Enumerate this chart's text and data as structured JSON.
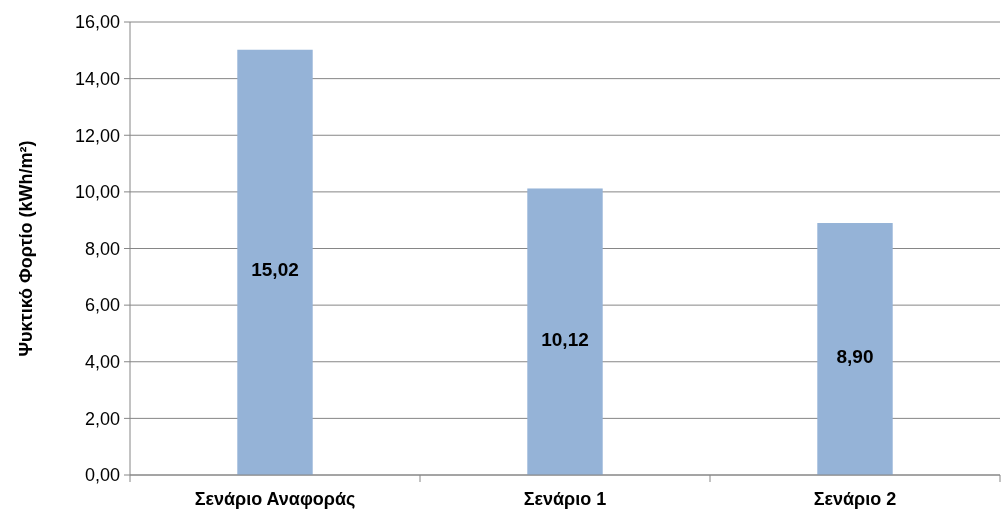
{
  "chart_data": {
    "type": "bar",
    "ylabel": "Ψυκτικό Φορτίο (kWh/m²)",
    "categories": [
      "Σενάριο Αναφοράς",
      "Σενάριο 1",
      "Σενάριο 2"
    ],
    "values": [
      15.02,
      10.12,
      8.9
    ],
    "color": "#95b3d7",
    "value_labels": [
      "15,02",
      "10,12",
      "8,90"
    ],
    "ylim": [
      0,
      16
    ],
    "yticks": [
      {
        "value": 0,
        "label": "0,00"
      },
      {
        "value": 2,
        "label": "2,00"
      },
      {
        "value": 4,
        "label": "4,00"
      },
      {
        "value": 6,
        "label": "6,00"
      },
      {
        "value": 8,
        "label": "8,00"
      },
      {
        "value": 10,
        "label": "10,00"
      },
      {
        "value": 12,
        "label": "12,00"
      },
      {
        "value": 14,
        "label": "14,00"
      },
      {
        "value": 16,
        "label": "16,00"
      }
    ],
    "grid": "y"
  }
}
